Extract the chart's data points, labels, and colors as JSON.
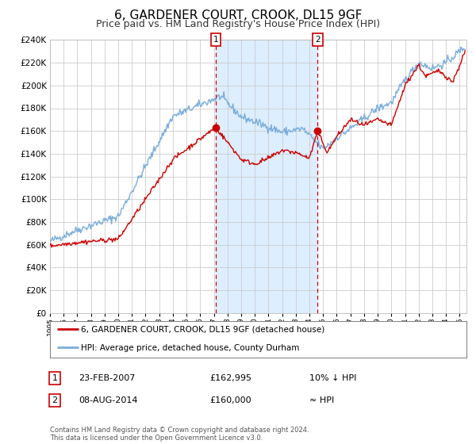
{
  "title": "6, GARDENER COURT, CROOK, DL15 9GF",
  "subtitle": "Price paid vs. HM Land Registry's House Price Index (HPI)",
  "ylim": [
    0,
    240000
  ],
  "yticks": [
    0,
    20000,
    40000,
    60000,
    80000,
    100000,
    120000,
    140000,
    160000,
    180000,
    200000,
    220000,
    240000
  ],
  "xlim_start": 1995.0,
  "xlim_end": 2025.5,
  "marker1_x": 2007.14,
  "marker1_y": 162995,
  "marker2_x": 2014.6,
  "marker2_y": 160000,
  "shaded_start": 2007.14,
  "shaded_end": 2014.6,
  "legend_label_red": "6, GARDENER COURT, CROOK, DL15 9GF (detached house)",
  "legend_label_blue": "HPI: Average price, detached house, County Durham",
  "table_row1": [
    "1",
    "23-FEB-2007",
    "£162,995",
    "10% ↓ HPI"
  ],
  "table_row2": [
    "2",
    "08-AUG-2014",
    "£160,000",
    "≈ HPI"
  ],
  "footnote": "Contains HM Land Registry data © Crown copyright and database right 2024.\nThis data is licensed under the Open Government Licence v3.0.",
  "red_color": "#cc0000",
  "blue_color": "#7aaddb",
  "shade_color": "#ddeeff",
  "background_color": "#ffffff",
  "grid_color": "#cccccc",
  "title_fontsize": 11,
  "subtitle_fontsize": 9
}
